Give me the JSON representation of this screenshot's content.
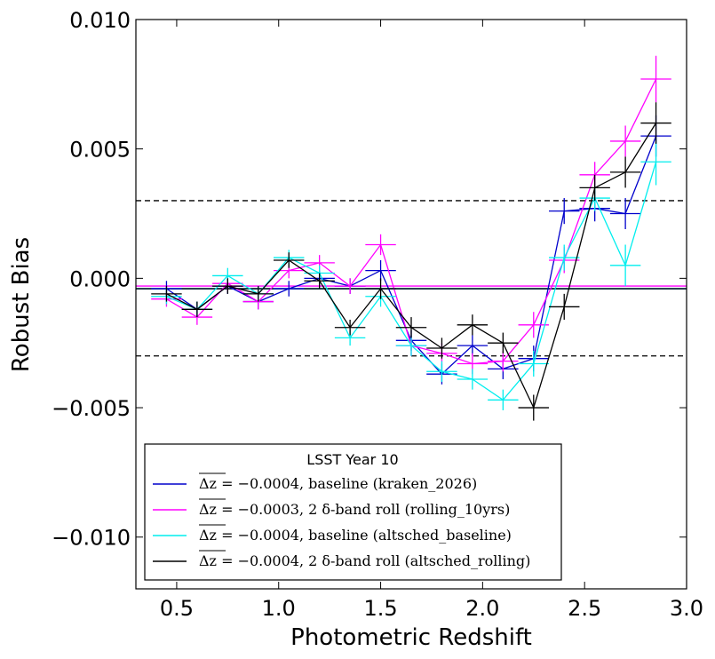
{
  "chart_data": {
    "type": "line",
    "title": "",
    "xlabel": "Photometric Redshift",
    "ylabel": "Robust Bias",
    "xlim": [
      0.3,
      3.0
    ],
    "ylim": [
      -0.012,
      0.01
    ],
    "xticks": [
      0.5,
      1.0,
      1.5,
      2.0,
      2.5,
      3.0
    ],
    "xtick_labels": [
      "0.5",
      "1.0",
      "1.5",
      "2.0",
      "2.5",
      "3.0"
    ],
    "yticks": [
      -0.01,
      -0.005,
      0.0,
      0.005,
      0.01
    ],
    "ytick_labels": [
      "−0.010",
      "−0.005",
      "0.000",
      "0.005",
      "0.010"
    ],
    "x_halfwidth": 0.075,
    "reference_lines": [
      {
        "y": 0.003,
        "style": "dashed",
        "color": "#000000"
      },
      {
        "y": -0.003,
        "style": "dashed",
        "color": "#000000"
      }
    ],
    "legend": {
      "title": "LSST Year 10",
      "placement": "lower-left"
    },
    "x": [
      0.45,
      0.6,
      0.75,
      0.9,
      1.05,
      1.2,
      1.35,
      1.5,
      1.65,
      1.8,
      1.95,
      2.1,
      2.25,
      2.4,
      2.55,
      2.7,
      2.85
    ],
    "series": [
      {
        "name": "baseline (kraken_2026)",
        "mean_text": "Δz = −0.0004",
        "mean": -0.0004,
        "color": "#0000cc",
        "values": [
          -0.0004,
          -0.0012,
          -0.0003,
          -0.0009,
          -0.0004,
          0.0,
          -0.0003,
          0.0003,
          -0.0024,
          -0.0037,
          -0.0026,
          -0.0035,
          -0.0031,
          0.0026,
          0.0027,
          0.0025,
          0.0055
        ],
        "errors": [
          0.0003,
          0.0003,
          0.0003,
          0.0003,
          0.0003,
          0.0003,
          0.0003,
          0.0004,
          0.0004,
          0.0004,
          0.0004,
          0.0004,
          0.0005,
          0.0005,
          0.0005,
          0.0006,
          0.0008
        ]
      },
      {
        "name": "2 δ-band roll (rolling_10yrs)",
        "mean_text": "Δz = −0.0003",
        "mean": -0.0003,
        "color": "#ff00ff",
        "values": [
          -0.0008,
          -0.0015,
          -0.0002,
          -0.0009,
          0.0003,
          0.0006,
          -0.0003,
          0.0013,
          -0.0026,
          -0.0029,
          -0.0033,
          -0.0032,
          -0.0018,
          0.0007,
          0.004,
          0.0053,
          0.0077
        ],
        "errors": [
          0.0003,
          0.0003,
          0.0003,
          0.0003,
          0.0003,
          0.0003,
          0.0003,
          0.0004,
          0.0004,
          0.0004,
          0.0004,
          0.0004,
          0.0005,
          0.0005,
          0.0005,
          0.0006,
          0.0009
        ]
      },
      {
        "name": "baseline (altsched_baseline)",
        "mean_text": "Δz = −0.0004",
        "mean": -0.0004,
        "color": "#00eeee",
        "values": [
          -0.0007,
          -0.0012,
          0.0001,
          -0.0006,
          0.0008,
          0.0002,
          -0.0023,
          -0.0007,
          -0.0026,
          -0.0036,
          -0.0039,
          -0.0047,
          -0.0033,
          0.0008,
          0.0031,
          0.0005,
          0.0045
        ],
        "errors": [
          0.0003,
          0.0003,
          0.0003,
          0.0003,
          0.0003,
          0.0003,
          0.0003,
          0.0004,
          0.0004,
          0.0004,
          0.0004,
          0.0004,
          0.0005,
          0.0005,
          0.0005,
          0.0008,
          0.0009
        ]
      },
      {
        "name": "2 δ-band roll (altsched_rolling)",
        "mean_text": "Δz = −0.0004",
        "mean": -0.0004,
        "color": "#000000",
        "values": [
          -0.0006,
          -0.0012,
          -0.0003,
          -0.0006,
          0.0007,
          -0.0001,
          -0.0019,
          -0.0004,
          -0.0019,
          -0.0027,
          -0.0018,
          -0.0025,
          -0.005,
          -0.0011,
          0.0035,
          0.0041,
          0.006
        ],
        "errors": [
          0.0003,
          0.0003,
          0.0003,
          0.0003,
          0.0003,
          0.0003,
          0.0003,
          0.0004,
          0.0004,
          0.0004,
          0.0004,
          0.0004,
          0.0005,
          0.0005,
          0.0005,
          0.0006,
          0.0008
        ]
      }
    ]
  }
}
